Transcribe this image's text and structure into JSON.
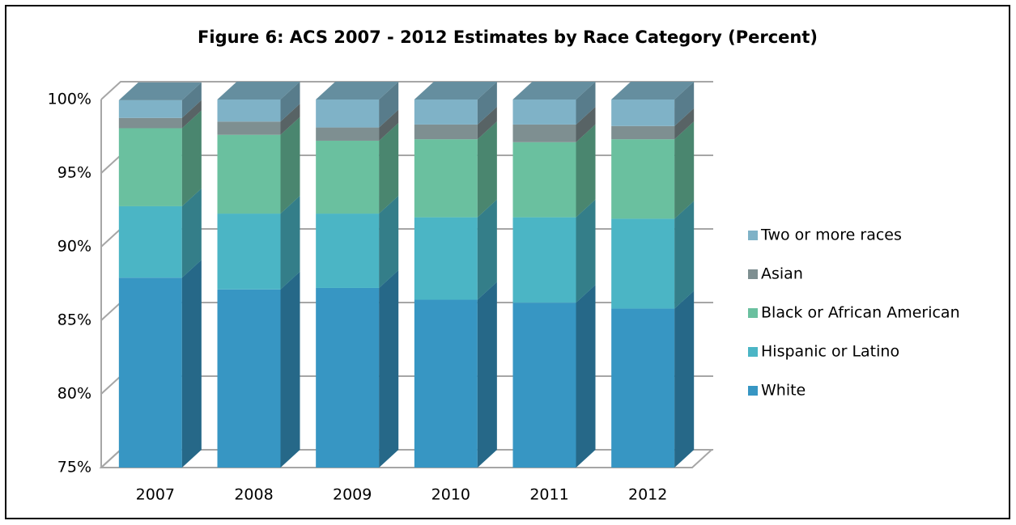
{
  "chart_data": {
    "type": "bar3d_stacked",
    "title": "Figure 6: ACS 2007 - 2012 Estimates by Race Category (Percent)",
    "categories": [
      "2007",
      "2008",
      "2009",
      "2010",
      "2011",
      "2012"
    ],
    "series": [
      {
        "name": "White",
        "color": "#3796c3",
        "values": [
          87.9,
          87.1,
          87.2,
          86.4,
          86.2,
          85.8
        ]
      },
      {
        "name": "Hispanic or Latino",
        "color": "#4bb5c5",
        "values": [
          4.85,
          5.15,
          5.05,
          5.6,
          5.8,
          6.1
        ]
      },
      {
        "name": "Black or African American",
        "color": "#6ac09f",
        "values": [
          5.3,
          5.35,
          4.95,
          5.3,
          5.1,
          5.4
        ]
      },
      {
        "name": "Asian",
        "color": "#7e8f91",
        "values": [
          0.7,
          0.9,
          0.9,
          1.0,
          1.2,
          0.9
        ]
      },
      {
        "name": "Two or more races",
        "color": "#7fb2c7",
        "values": [
          1.2,
          1.5,
          1.9,
          1.7,
          1.7,
          1.8
        ]
      }
    ],
    "ylim": [
      75,
      100
    ],
    "yticks": [
      {
        "value": 75,
        "label": "75%"
      },
      {
        "value": 80,
        "label": "80%"
      },
      {
        "value": 85,
        "label": "85%"
      },
      {
        "value": 90,
        "label": "90%"
      },
      {
        "value": 95,
        "label": "95%"
      },
      {
        "value": 100,
        "label": "100%"
      }
    ],
    "grid": true,
    "legend": "right"
  }
}
